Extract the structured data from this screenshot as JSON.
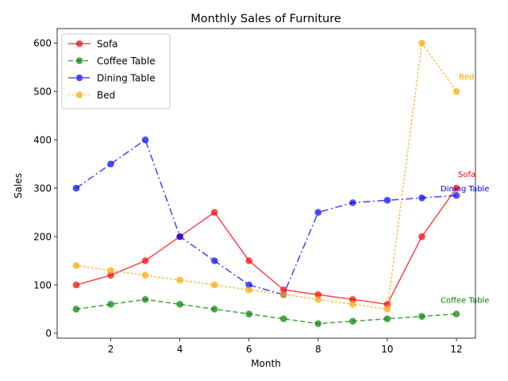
{
  "chart_data": {
    "type": "line",
    "title": "Monthly Sales of Furniture",
    "xlabel": "Month",
    "ylabel": "Sales",
    "x": [
      1,
      2,
      3,
      4,
      5,
      6,
      7,
      8,
      9,
      10,
      11,
      12
    ],
    "xlim": [
      0.45,
      12.55
    ],
    "ylim": [
      -10,
      630
    ],
    "xticks": [
      2,
      4,
      6,
      8,
      10,
      12
    ],
    "yticks": [
      0,
      100,
      200,
      300,
      400,
      500,
      600
    ],
    "grid": false,
    "legend": "top-left",
    "series": [
      {
        "name": "Sofa",
        "color": "#ff0000",
        "linestyle": "solid",
        "values": [
          100,
          120,
          150,
          200,
          250,
          150,
          90,
          80,
          70,
          60,
          200,
          300
        ]
      },
      {
        "name": "Coffee Table",
        "color": "#008000",
        "linestyle": "dashed",
        "values": [
          50,
          60,
          70,
          60,
          50,
          40,
          30,
          20,
          25,
          30,
          35,
          40
        ]
      },
      {
        "name": "Dining Table",
        "color": "#0000ff",
        "linestyle": "dashdot",
        "values": [
          300,
          350,
          400,
          200,
          150,
          100,
          80,
          250,
          270,
          275,
          280,
          285
        ]
      },
      {
        "name": "Bed",
        "color": "#ffa500",
        "linestyle": "dotted",
        "values": [
          140,
          130,
          120,
          110,
          100,
          90,
          80,
          70,
          60,
          50,
          600,
          500
        ]
      }
    ],
    "annotations": [
      {
        "text": "Sofa",
        "series": "Sofa",
        "x": 12,
        "y": 300,
        "color": "#ff0000"
      },
      {
        "text": "Coffee Table",
        "series": "Coffee Table",
        "x": 12,
        "y": 40,
        "color": "#008000"
      },
      {
        "text": "Dining Table",
        "series": "Dining Table",
        "x": 12,
        "y": 285,
        "color": "#0000ff"
      },
      {
        "text": "Bed",
        "series": "Bed",
        "x": 12,
        "y": 500,
        "color": "#ffa500"
      }
    ]
  }
}
